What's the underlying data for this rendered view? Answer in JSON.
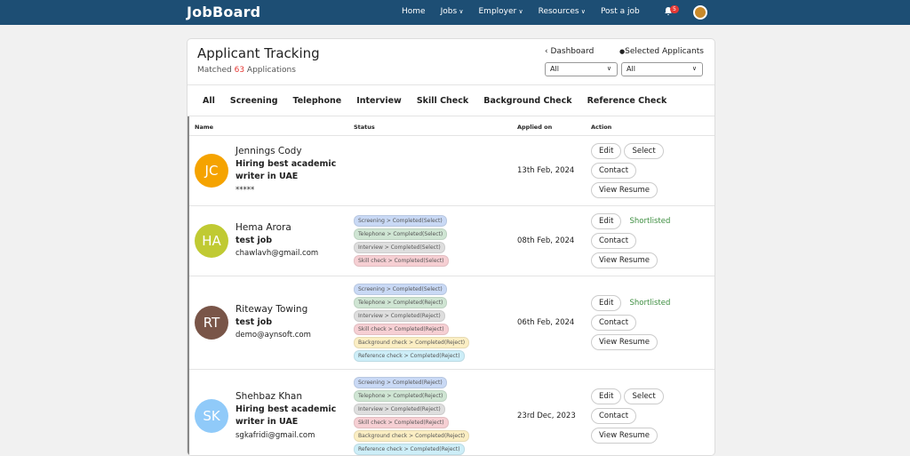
{
  "nav": {
    "brand": "JobBoard",
    "links": [
      {
        "label": "Home",
        "dropdown": false
      },
      {
        "label": "Jobs",
        "dropdown": true
      },
      {
        "label": "Employer",
        "dropdown": true
      },
      {
        "label": "Resources",
        "dropdown": true
      },
      {
        "label": "Post a job",
        "dropdown": false
      }
    ],
    "notifications": "5"
  },
  "header": {
    "title": "Applicant Tracking",
    "matched_prefix": "Matched",
    "matched_count": "63",
    "matched_suffix": "Applications",
    "dashboard": "Dashboard",
    "selected": "Selected Applicants",
    "filters": [
      "All",
      "All"
    ]
  },
  "tabs": [
    "All",
    "Screening",
    "Telephone",
    "Interview",
    "Skill Check",
    "Background Check",
    "Reference Check"
  ],
  "table": {
    "columns": [
      "Name",
      "Status",
      "Applied on",
      "Action"
    ],
    "rows": [
      {
        "initials": "JC",
        "avatar_color": "#f5a300",
        "name": "Jennings Cody",
        "job": "Hiring best academic writer in UAE",
        "contact": "*****",
        "statuses": [],
        "applied": "13th Feb, 2024",
        "edit": "Edit",
        "select_button": "Select",
        "contact_button": "Contact",
        "resume": "View Resume"
      },
      {
        "initials": "HA",
        "avatar_color": "#c0ca33",
        "name": "Hema Arora",
        "job": "test job",
        "contact": "chawlavh@gmail.com",
        "statuses": [
          "Screening > Completed(Select)",
          "Telephone > Completed(Select)",
          "Interview > Completed(Select)",
          "Skill check > Completed(Select)"
        ],
        "applied": "08th Feb, 2024",
        "edit": "Edit",
        "status_label": "Shortlisted",
        "contact_button": "Contact",
        "resume": "View Resume"
      },
      {
        "initials": "RT",
        "avatar_color": "#795548",
        "name": "Riteway Towing",
        "job": "test job",
        "contact": "demo@aynsoft.com",
        "statuses": [
          "Screening > Completed(Select)",
          "Telephone > Completed(Reject)",
          "Interview > Completed(Reject)",
          "Skill check > Completed(Reject)",
          "Background check > Completed(Reject)",
          "Reference check > Completed(Reject)"
        ],
        "applied": "06th Feb, 2024",
        "edit": "Edit",
        "status_label": "Shortlisted",
        "contact_button": "Contact",
        "resume": "View Resume"
      },
      {
        "initials": "SK",
        "avatar_color": "#90caf9",
        "name": "Shehbaz Khan",
        "job": "Hiring best academic writer in UAE",
        "contact": "sgkafridi@gmail.com",
        "statuses": [
          "Screening > Completed(Reject)",
          "Telephone > Completed(Reject)",
          "Interview > Completed(Reject)",
          "Skill check > Completed(Reject)",
          "Background check > Completed(Reject)",
          "Reference check > Completed(Reject)"
        ],
        "applied": "23rd Dec, 2023",
        "edit": "Edit",
        "select_button": "Select",
        "contact_button": "Contact",
        "resume": "View Resume"
      }
    ]
  }
}
